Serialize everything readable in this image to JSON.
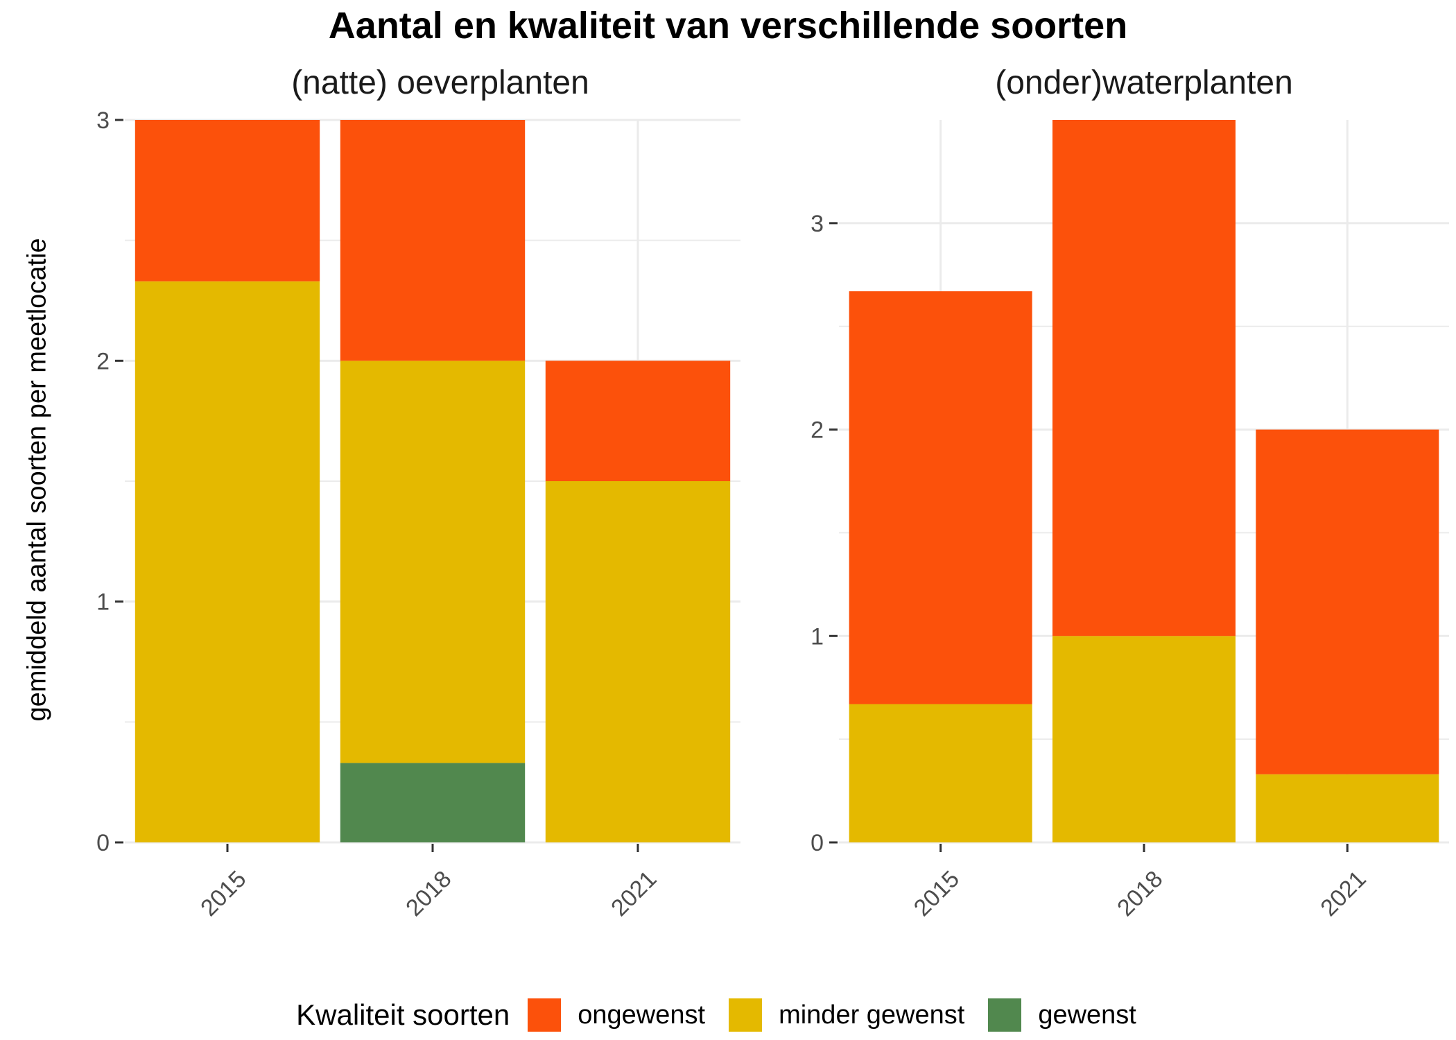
{
  "title": "Aantal en kwaliteit van verschillende soorten",
  "y_axis_label": "gemiddeld aantal soorten per meetlocatie",
  "legend": {
    "title": "Kwaliteit soorten",
    "placement": "bottom",
    "items": [
      {
        "label": "ongewenst",
        "color": "#FC510B"
      },
      {
        "label": "minder gewenst",
        "color": "#E4B900"
      },
      {
        "label": "gewenst",
        "color": "#51884E"
      }
    ]
  },
  "chart_data": [
    {
      "type": "bar",
      "stacked": true,
      "title": "(natte) oeverplanten",
      "categories": [
        "2015",
        "2018",
        "2021"
      ],
      "ylim": [
        0,
        3
      ],
      "y_ticks": [
        0,
        1,
        2,
        3
      ],
      "grid": true,
      "series": [
        {
          "name": "gewenst",
          "color": "#51884E",
          "values": [
            0,
            0.33,
            0
          ]
        },
        {
          "name": "minder gewenst",
          "color": "#E4B900",
          "values": [
            2.33,
            1.67,
            1.5
          ]
        },
        {
          "name": "ongewenst",
          "color": "#FC510B",
          "values": [
            0.67,
            1.0,
            0.5
          ]
        }
      ]
    },
    {
      "type": "bar",
      "stacked": true,
      "title": "(onder)waterplanten",
      "categories": [
        "2015",
        "2018",
        "2021"
      ],
      "ylim": [
        0,
        3.5
      ],
      "y_ticks": [
        0,
        1,
        2,
        3
      ],
      "grid": true,
      "series": [
        {
          "name": "gewenst",
          "color": "#51884E",
          "values": [
            0,
            0,
            0
          ]
        },
        {
          "name": "minder gewenst",
          "color": "#E4B900",
          "values": [
            0.67,
            1.0,
            0.33
          ]
        },
        {
          "name": "ongewenst",
          "color": "#FC510B",
          "values": [
            2.0,
            2.5,
            1.67
          ]
        }
      ]
    }
  ]
}
